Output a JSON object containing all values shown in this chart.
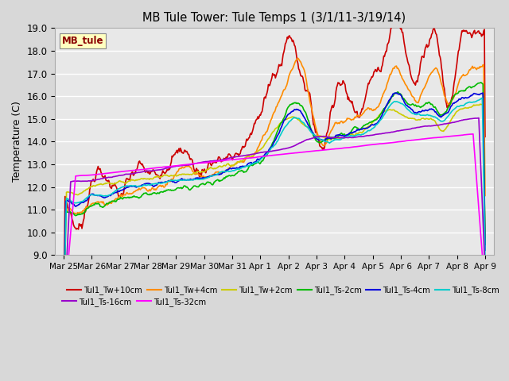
{
  "title": "MB Tule Tower: Tule Temps 1 (3/1/11-3/19/14)",
  "ylabel": "Temperature (C)",
  "ylim": [
    9.0,
    19.0
  ],
  "yticks": [
    9.0,
    10.0,
    11.0,
    12.0,
    13.0,
    14.0,
    15.0,
    16.0,
    17.0,
    18.0,
    19.0
  ],
  "xlabels": [
    "Mar 25",
    "Mar 26",
    "Mar 27",
    "Mar 28",
    "Mar 29",
    "Mar 30",
    "Mar 31",
    "Apr 1",
    "Apr 2",
    "Apr 3",
    "Apr 4",
    "Apr 5",
    "Apr 6",
    "Apr 7",
    "Apr 8",
    "Apr 9"
  ],
  "bg_color": "#e8e8e8",
  "grid_color": "#ffffff",
  "legend_box_color": "#ffffc0",
  "legend_box_text": "MB_tule",
  "legend_box_text_color": "#8b0000",
  "series": [
    {
      "label": "Tul1_Tw+10cm",
      "color": "#cc0000",
      "lw": 1.2
    },
    {
      "label": "Tul1_Tw+4cm",
      "color": "#ff8c00",
      "lw": 1.2
    },
    {
      "label": "Tul1_Tw+2cm",
      "color": "#cccc00",
      "lw": 1.2
    },
    {
      "label": "Tul1_Ts-2cm",
      "color": "#00bb00",
      "lw": 1.2
    },
    {
      "label": "Tul1_Ts-4cm",
      "color": "#0000dd",
      "lw": 1.2
    },
    {
      "label": "Tul1_Ts-8cm",
      "color": "#00cccc",
      "lw": 1.2
    },
    {
      "label": "Tul1_Ts-16cm",
      "color": "#9900cc",
      "lw": 1.2
    },
    {
      "label": "Tul1_Ts-32cm",
      "color": "#ff00ff",
      "lw": 1.2
    }
  ]
}
